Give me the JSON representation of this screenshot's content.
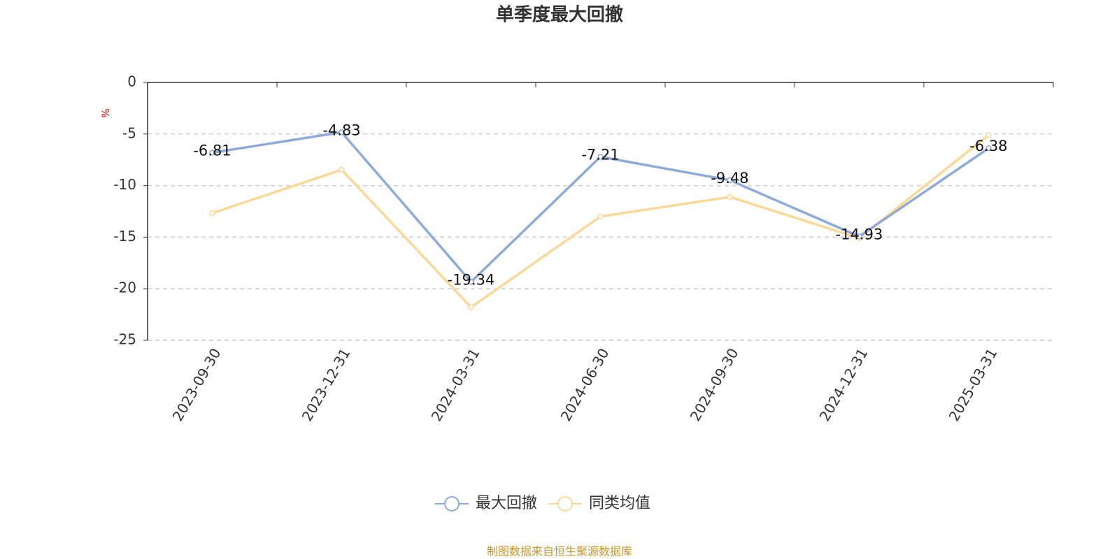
{
  "chart_data": {
    "type": "line",
    "title": "单季度最大回撤",
    "y_label": "%",
    "categories": [
      "2023-09-30",
      "2023-12-31",
      "2024-03-31",
      "2024-06-30",
      "2024-09-30",
      "2024-12-31",
      "2025-03-31"
    ],
    "series": [
      {
        "name": "最大回撤",
        "color": "#8eaad8",
        "values": [
          -6.81,
          -4.83,
          -19.34,
          -7.21,
          -9.48,
          -14.93,
          -6.38
        ]
      },
      {
        "name": "同类均值",
        "color": "#fcd898",
        "values": [
          -12.67,
          -8.47,
          -21.8,
          -13.0,
          -11.1,
          -15.1,
          -5.1
        ]
      }
    ],
    "ylim": [
      -25,
      0
    ],
    "yticks": [
      0,
      -5,
      -10,
      -15,
      -20,
      -25
    ],
    "grid": true,
    "source": "制图数据来自恒生聚源数据库"
  }
}
